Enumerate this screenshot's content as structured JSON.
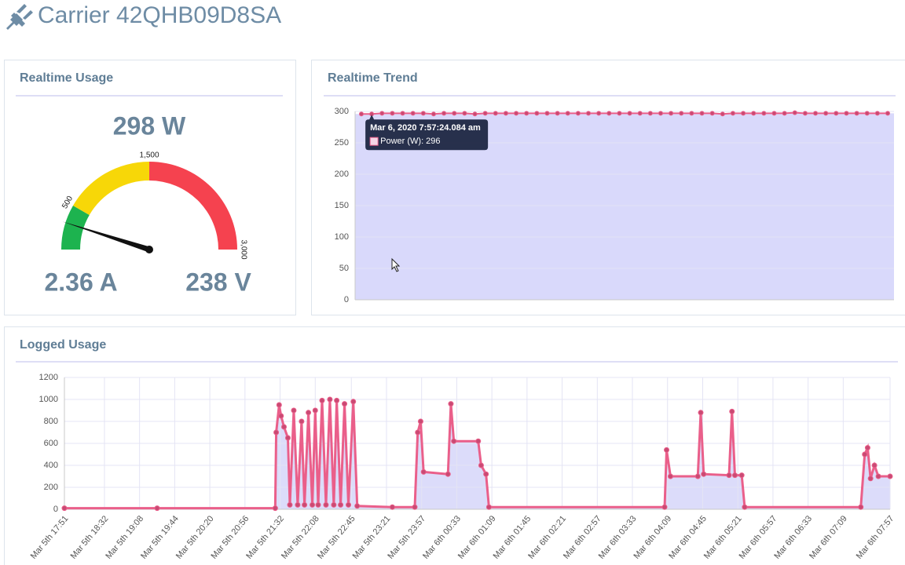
{
  "header": {
    "title": "Carrier 42QHB09D8SA"
  },
  "chart_data": [
    {
      "type": "gauge",
      "title": "Realtime Usage",
      "value": 298,
      "value_label": "298 W",
      "min": 0,
      "max": 3000,
      "bands": [
        {
          "from": 0,
          "to": 500,
          "color": "#1db34f"
        },
        {
          "from": 500,
          "to": 1500,
          "color": "#f7d708"
        },
        {
          "from": 1500,
          "to": 3000,
          "color": "#f5424f"
        }
      ],
      "ticks": [
        500,
        {
          "value": 1500,
          "label": "1,500"
        },
        {
          "value": 3000,
          "label": "3,000"
        }
      ],
      "readouts": [
        "2.36 A",
        "238 V"
      ]
    },
    {
      "type": "line",
      "title": "Realtime Trend",
      "color": "#ea5f8a",
      "fill": "#d9d9fb",
      "values": [
        296,
        296,
        297,
        297,
        297,
        297,
        297,
        296,
        297,
        297,
        297,
        296,
        297,
        297,
        297,
        297,
        297,
        297,
        297,
        297,
        297,
        297,
        297,
        297,
        297,
        297,
        297,
        297,
        297,
        297,
        297,
        297,
        297,
        297,
        297,
        296,
        297,
        297,
        297,
        297,
        297,
        297,
        298,
        297,
        297,
        297,
        297,
        297,
        297,
        297,
        297,
        297
      ],
      "ylim": [
        0,
        300
      ],
      "yticks": [
        0,
        50,
        100,
        150,
        200,
        250,
        300
      ],
      "grid": true,
      "tooltip": {
        "index": 1,
        "title": "Mar 6, 2020 7:57:24.084 am",
        "label": "Power (W): 296"
      }
    },
    {
      "type": "line",
      "title": "Logged Usage",
      "color": "#ea5f8a",
      "fill": "#dcdcfa",
      "x": [
        0,
        95,
        216,
        217,
        220,
        222,
        225,
        229,
        231,
        235,
        239,
        243,
        246,
        250,
        254,
        257,
        260,
        264,
        268,
        272,
        276,
        279,
        283,
        287,
        291,
        296,
        300,
        336,
        359,
        362,
        365,
        368,
        393,
        396,
        399,
        424,
        427,
        432,
        435,
        615,
        617,
        621,
        649,
        652,
        655,
        681,
        684,
        687,
        694,
        697,
        816,
        820,
        823,
        826,
        830,
        834,
        846
      ],
      "values": [
        10,
        10,
        10,
        700,
        950,
        850,
        750,
        650,
        40,
        900,
        40,
        800,
        40,
        880,
        40,
        900,
        40,
        990,
        40,
        1000,
        40,
        990,
        40,
        960,
        40,
        980,
        30,
        20,
        20,
        700,
        800,
        340,
        320,
        960,
        620,
        620,
        400,
        320,
        20,
        20,
        540,
        300,
        300,
        880,
        320,
        310,
        890,
        310,
        310,
        20,
        20,
        500,
        560,
        280,
        400,
        300,
        300
      ],
      "xlim": [
        0,
        846
      ],
      "xticks": [
        {
          "value": 0,
          "label": "Mar 5th 17:51"
        },
        {
          "value": 41,
          "label": "Mar 5th 18:32"
        },
        {
          "value": 77,
          "label": "Mar 5th 19:08"
        },
        {
          "value": 113,
          "label": "Mar 5th 19:44"
        },
        {
          "value": 149,
          "label": "Mar 5th 20:20"
        },
        {
          "value": 185,
          "label": "Mar 5th 20:56"
        },
        {
          "value": 221,
          "label": "Mar 5th 21:32"
        },
        {
          "value": 257,
          "label": "Mar 5th 22:08"
        },
        {
          "value": 294,
          "label": "Mar 5th 22:45"
        },
        {
          "value": 330,
          "label": "Mar 5th 23:21"
        },
        {
          "value": 366,
          "label": "Mar 5th 23:57"
        },
        {
          "value": 402,
          "label": "Mar 6th 00:33"
        },
        {
          "value": 438,
          "label": "Mar 6th 01:09"
        },
        {
          "value": 474,
          "label": "Mar 6th 01:45"
        },
        {
          "value": 510,
          "label": "Mar 6th 02:21"
        },
        {
          "value": 546,
          "label": "Mar 6th 02:57"
        },
        {
          "value": 582,
          "label": "Mar 6th 03:33"
        },
        {
          "value": 618,
          "label": "Mar 6th 04:09"
        },
        {
          "value": 654,
          "label": "Mar 6th 04:45"
        },
        {
          "value": 690,
          "label": "Mar 6th 05:21"
        },
        {
          "value": 726,
          "label": "Mar 6th 05:57"
        },
        {
          "value": 762,
          "label": "Mar 6th 06:33"
        },
        {
          "value": 798,
          "label": "Mar 6th 07:09"
        },
        {
          "value": 846,
          "label": "Mar 6th 07:57"
        }
      ],
      "ylim": [
        0,
        1200
      ],
      "yticks": [
        0,
        200,
        400,
        600,
        800,
        1000,
        1200
      ],
      "grid": true
    }
  ]
}
